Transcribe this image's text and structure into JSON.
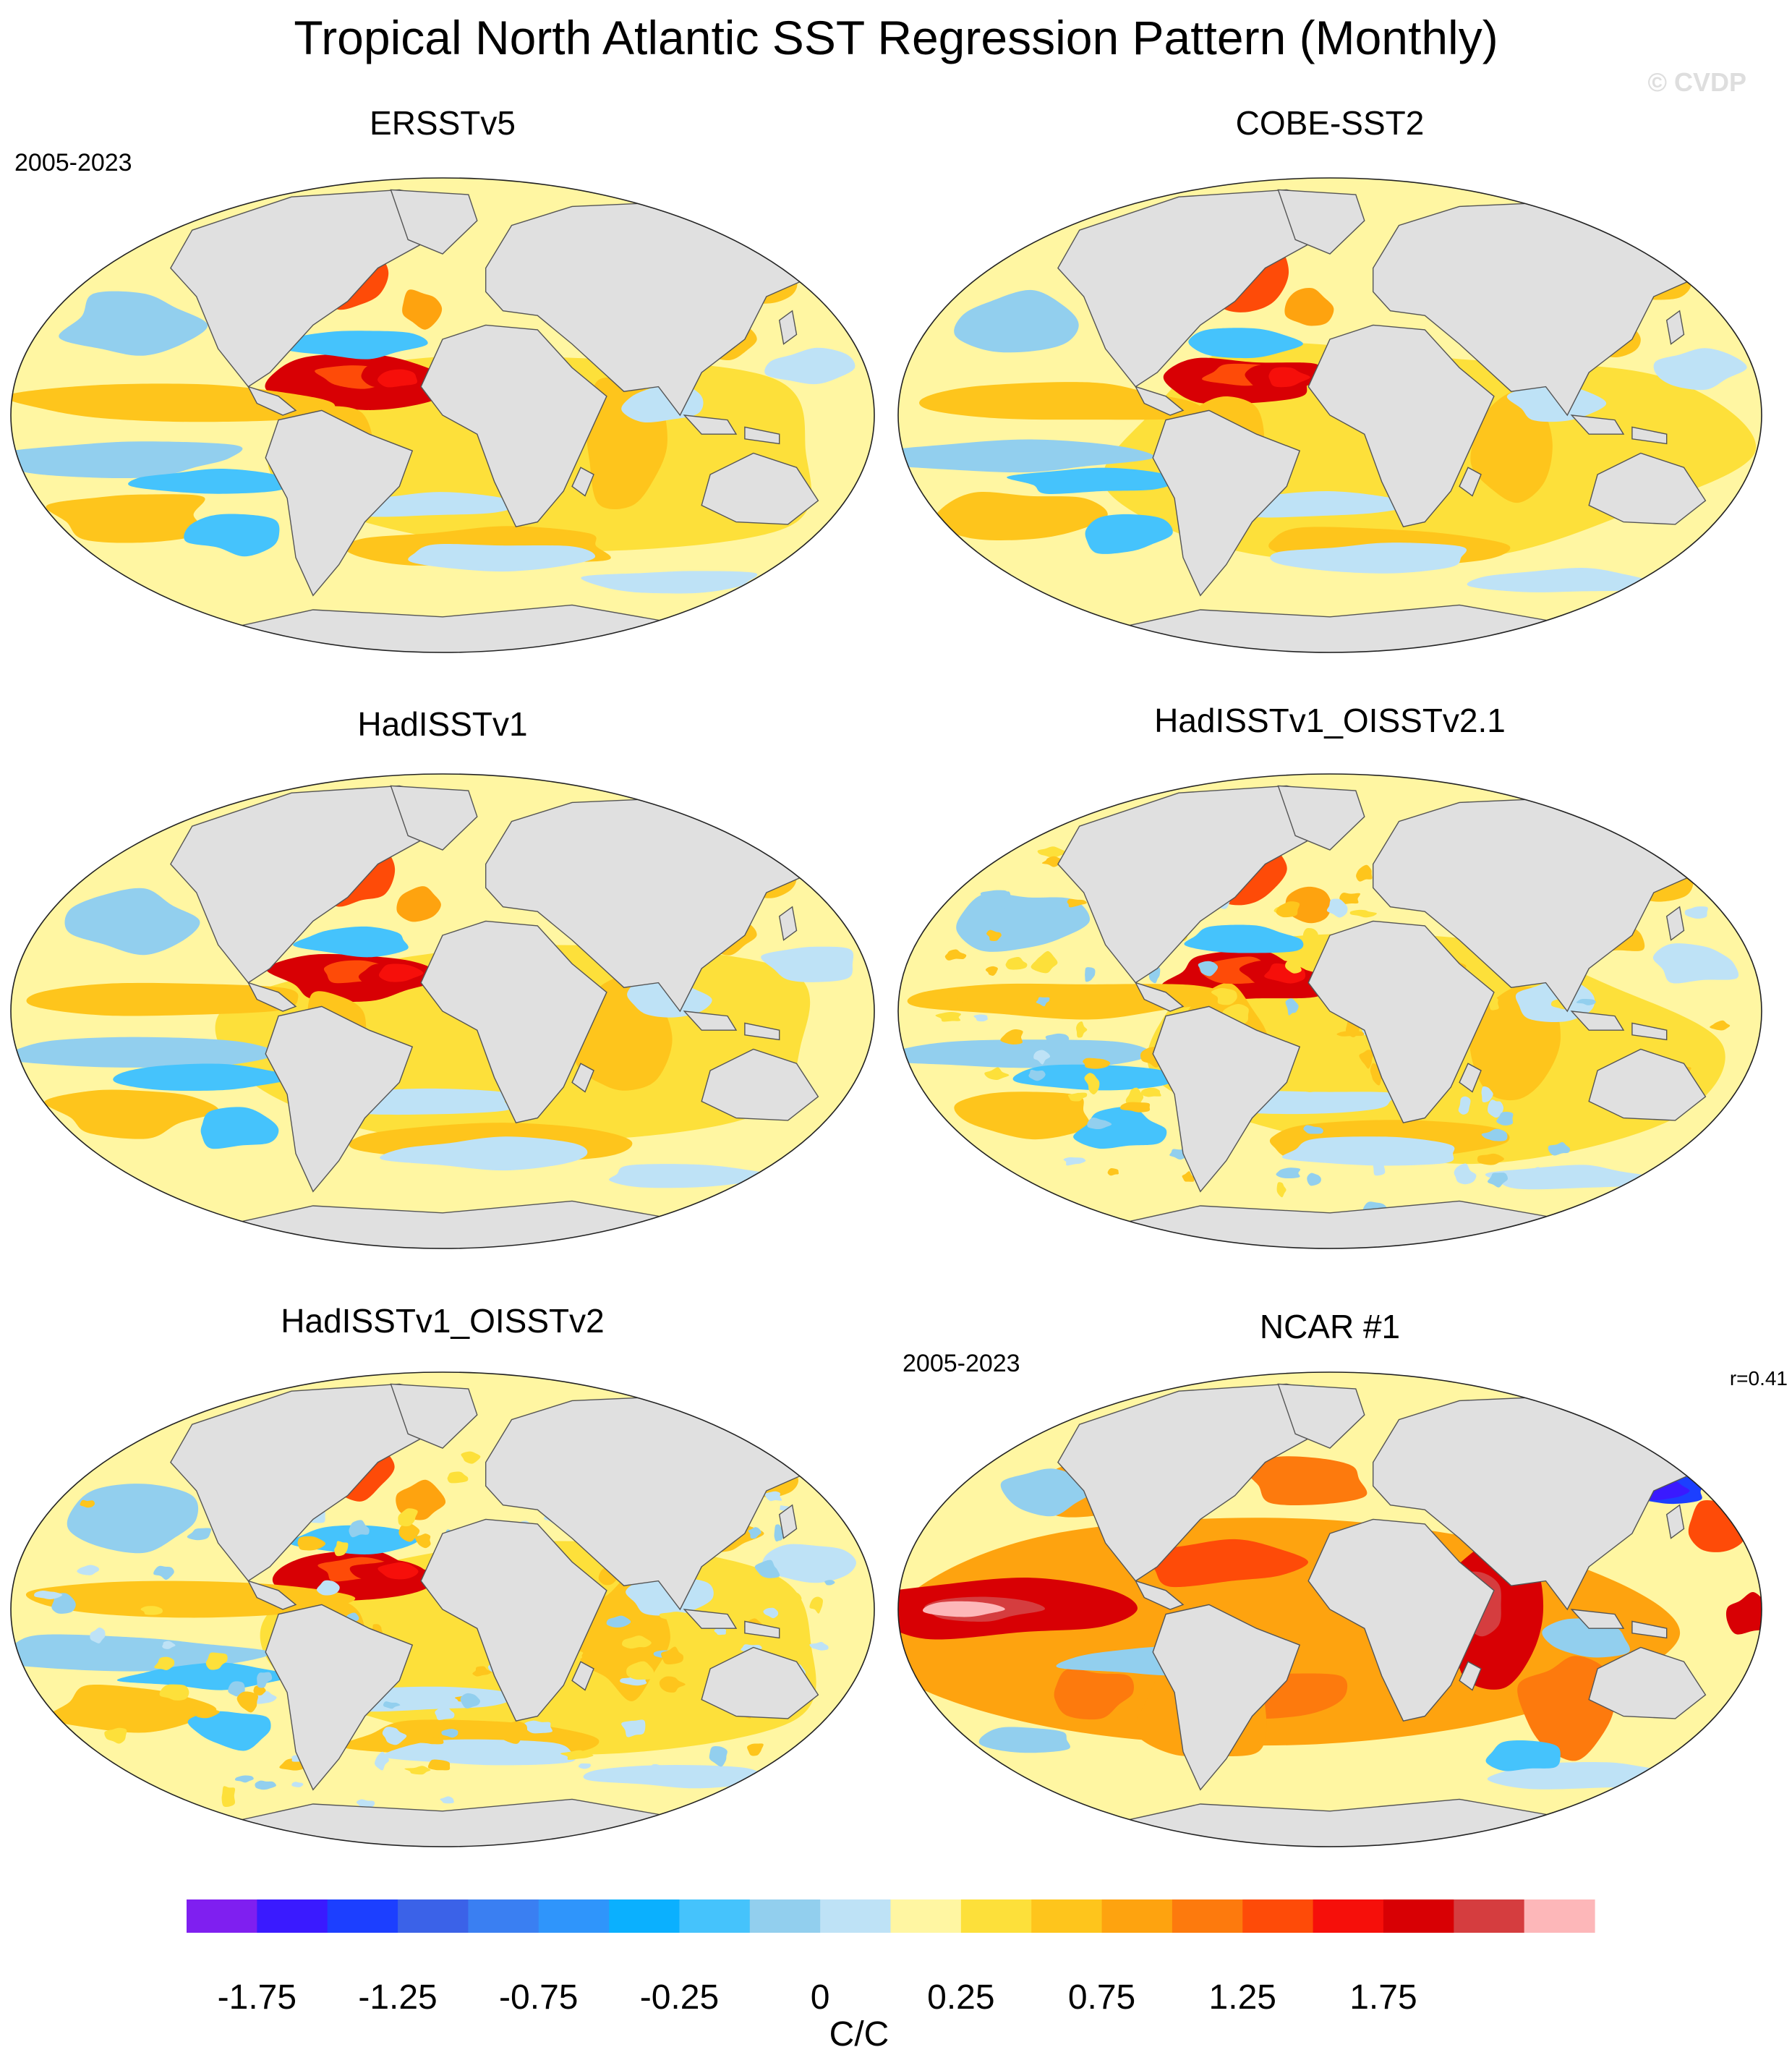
{
  "title": "Tropical North Atlantic SST Regression Pattern (Monthly)",
  "watermark": "© CVDP",
  "panels": [
    {
      "name": "ERSSTv5",
      "period": "2005-2023",
      "corr": "",
      "style": "obs"
    },
    {
      "name": "COBE-SST2",
      "period": "",
      "corr": "",
      "style": "obs"
    },
    {
      "name": "HadISSTv1",
      "period": "",
      "corr": "",
      "style": "obs"
    },
    {
      "name": "HadISSTv1_OISSTv2.1",
      "period": "",
      "corr": "",
      "style": "obs-noisy"
    },
    {
      "name": "HadISSTv1_OISSTv2",
      "period": "",
      "corr": "",
      "style": "obs-noisy"
    },
    {
      "name": "NCAR #1",
      "period": "2005-2023",
      "corr": "r=0.41",
      "style": "model"
    }
  ],
  "colorbar": {
    "colors": [
      "#7f1ff0",
      "#3a1aff",
      "#1c3fff",
      "#3b62e8",
      "#3a7ff2",
      "#2f95fb",
      "#0bb0fe",
      "#45c3fc",
      "#92cfee",
      "#bee2f6",
      "#fff6a2",
      "#fde03a",
      "#fec51c",
      "#fea30f",
      "#fd7a0d",
      "#fe4b08",
      "#f60f0a",
      "#d80004",
      "#d53d3f",
      "#fdb7b9"
    ],
    "tick_labels": [
      "-1.75",
      "-1.25",
      "-0.75",
      "-0.25",
      "0",
      "0.25",
      "0.75",
      "1.25",
      "1.75"
    ],
    "units": "C/C"
  }
}
